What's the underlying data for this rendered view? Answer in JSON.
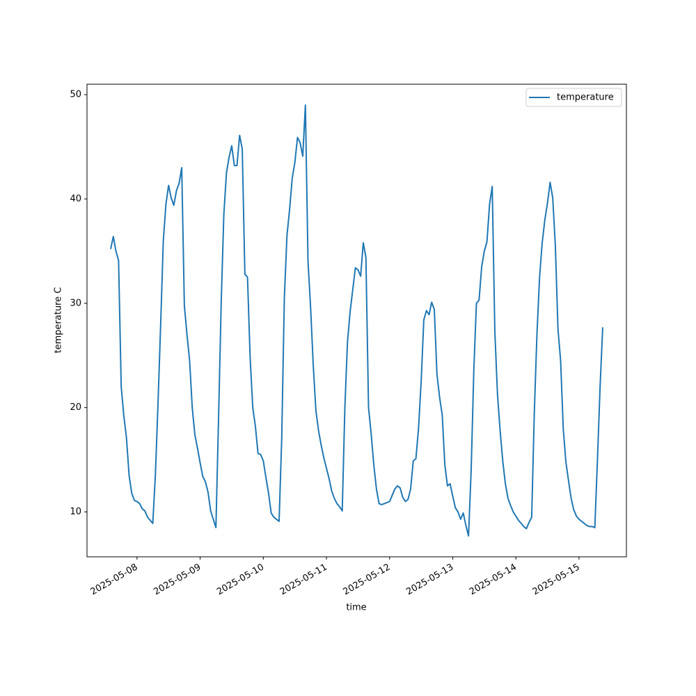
{
  "chart_data": {
    "type": "line",
    "xlabel": "time",
    "ylabel": "temperature C",
    "x": [
      "2025-05-07 14:00",
      "2025-05-07 15:00",
      "2025-05-07 16:00",
      "2025-05-07 17:00",
      "2025-05-07 18:00",
      "2025-05-07 19:00",
      "2025-05-07 20:00",
      "2025-05-07 21:00",
      "2025-05-07 22:00",
      "2025-05-07 23:00",
      "2025-05-08 00:00",
      "2025-05-08 01:00",
      "2025-05-08 02:00",
      "2025-05-08 03:00",
      "2025-05-08 04:00",
      "2025-05-08 05:00",
      "2025-05-08 06:00",
      "2025-05-08 07:00",
      "2025-05-08 08:00",
      "2025-05-08 09:00",
      "2025-05-08 10:00",
      "2025-05-08 11:00",
      "2025-05-08 12:00",
      "2025-05-08 13:00",
      "2025-05-08 14:00",
      "2025-05-08 15:00",
      "2025-05-08 16:00",
      "2025-05-08 17:00",
      "2025-05-08 18:00",
      "2025-05-08 19:00",
      "2025-05-08 20:00",
      "2025-05-08 21:00",
      "2025-05-08 22:00",
      "2025-05-08 23:00",
      "2025-05-09 00:00",
      "2025-05-09 01:00",
      "2025-05-09 02:00",
      "2025-05-09 03:00",
      "2025-05-09 04:00",
      "2025-05-09 05:00",
      "2025-05-09 06:00",
      "2025-05-09 07:00",
      "2025-05-09 08:00",
      "2025-05-09 09:00",
      "2025-05-09 10:00",
      "2025-05-09 11:00",
      "2025-05-09 12:00",
      "2025-05-09 13:00",
      "2025-05-09 14:00",
      "2025-05-09 15:00",
      "2025-05-09 16:00",
      "2025-05-09 17:00",
      "2025-05-09 18:00",
      "2025-05-09 19:00",
      "2025-05-09 20:00",
      "2025-05-09 21:00",
      "2025-05-09 22:00",
      "2025-05-09 23:00",
      "2025-05-10 00:00",
      "2025-05-10 01:00",
      "2025-05-10 02:00",
      "2025-05-10 03:00",
      "2025-05-10 04:00",
      "2025-05-10 05:00",
      "2025-05-10 06:00",
      "2025-05-10 07:00",
      "2025-05-10 08:00",
      "2025-05-10 09:00",
      "2025-05-10 10:00",
      "2025-05-10 11:00",
      "2025-05-10 12:00",
      "2025-05-10 13:00",
      "2025-05-10 14:00",
      "2025-05-10 15:00",
      "2025-05-10 16:00",
      "2025-05-10 17:00",
      "2025-05-10 18:00",
      "2025-05-10 19:00",
      "2025-05-10 20:00",
      "2025-05-10 21:00",
      "2025-05-10 22:00",
      "2025-05-10 23:00",
      "2025-05-11 00:00",
      "2025-05-11 01:00",
      "2025-05-11 02:00",
      "2025-05-11 03:00",
      "2025-05-11 04:00",
      "2025-05-11 05:00",
      "2025-05-11 06:00",
      "2025-05-11 07:00",
      "2025-05-11 08:00",
      "2025-05-11 09:00",
      "2025-05-11 10:00",
      "2025-05-11 11:00",
      "2025-05-11 12:00",
      "2025-05-11 13:00",
      "2025-05-11 14:00",
      "2025-05-11 15:00",
      "2025-05-11 16:00",
      "2025-05-11 17:00",
      "2025-05-11 18:00",
      "2025-05-11 19:00",
      "2025-05-11 20:00",
      "2025-05-11 21:00",
      "2025-05-11 22:00",
      "2025-05-11 23:00",
      "2025-05-12 00:00",
      "2025-05-12 01:00",
      "2025-05-12 02:00",
      "2025-05-12 03:00",
      "2025-05-12 04:00",
      "2025-05-12 05:00",
      "2025-05-12 06:00",
      "2025-05-12 07:00",
      "2025-05-12 08:00",
      "2025-05-12 09:00",
      "2025-05-12 10:00",
      "2025-05-12 11:00",
      "2025-05-12 12:00",
      "2025-05-12 13:00",
      "2025-05-12 14:00",
      "2025-05-12 15:00",
      "2025-05-12 16:00",
      "2025-05-12 17:00",
      "2025-05-12 18:00",
      "2025-05-12 19:00",
      "2025-05-12 20:00",
      "2025-05-12 21:00",
      "2025-05-12 22:00",
      "2025-05-12 23:00",
      "2025-05-13 00:00",
      "2025-05-13 01:00",
      "2025-05-13 02:00",
      "2025-05-13 03:00",
      "2025-05-13 04:00",
      "2025-05-13 05:00",
      "2025-05-13 06:00",
      "2025-05-13 07:00",
      "2025-05-13 08:00",
      "2025-05-13 09:00",
      "2025-05-13 10:00",
      "2025-05-13 11:00",
      "2025-05-13 12:00",
      "2025-05-13 13:00",
      "2025-05-13 14:00",
      "2025-05-13 15:00",
      "2025-05-13 16:00",
      "2025-05-13 17:00",
      "2025-05-13 18:00",
      "2025-05-13 19:00",
      "2025-05-13 20:00",
      "2025-05-13 21:00",
      "2025-05-13 22:00",
      "2025-05-13 23:00",
      "2025-05-14 00:00",
      "2025-05-14 01:00",
      "2025-05-14 02:00",
      "2025-05-14 03:00",
      "2025-05-14 04:00",
      "2025-05-14 05:00",
      "2025-05-14 06:00",
      "2025-05-14 07:00",
      "2025-05-14 08:00",
      "2025-05-14 09:00",
      "2025-05-14 10:00",
      "2025-05-14 11:00",
      "2025-05-14 12:00",
      "2025-05-14 13:00",
      "2025-05-14 14:00",
      "2025-05-14 15:00",
      "2025-05-14 16:00",
      "2025-05-14 17:00",
      "2025-05-14 18:00",
      "2025-05-14 19:00",
      "2025-05-14 20:00",
      "2025-05-14 21:00",
      "2025-05-14 22:00",
      "2025-05-14 23:00",
      "2025-05-15 00:00",
      "2025-05-15 01:00",
      "2025-05-15 02:00",
      "2025-05-15 03:00",
      "2025-05-15 04:00",
      "2025-05-15 05:00",
      "2025-05-15 06:00",
      "2025-05-15 07:00",
      "2025-05-15 08:00",
      "2025-05-15 09:00"
    ],
    "series": [
      {
        "name": "temperature",
        "color": "#1f77b4",
        "values": [
          35.2,
          36.4,
          35.0,
          34.1,
          22.0,
          19.2,
          17.1,
          13.5,
          11.8,
          11.1,
          11.0,
          10.8,
          10.3,
          10.1,
          9.5,
          9.2,
          8.9,
          13.6,
          20.5,
          28.0,
          36.0,
          39.5,
          41.3,
          40.1,
          39.4,
          40.8,
          41.5,
          43.0,
          29.8,
          27.0,
          24.5,
          20.0,
          17.4,
          16.1,
          14.7,
          13.4,
          12.9,
          11.9,
          10.1,
          9.3,
          8.5,
          19.0,
          30.0,
          38.5,
          42.5,
          44.0,
          45.1,
          43.2,
          43.2,
          46.1,
          44.8,
          32.8,
          32.5,
          24.8,
          20.0,
          18.2,
          15.6,
          15.5,
          14.9,
          13.3,
          11.8,
          9.9,
          9.5,
          9.3,
          9.1,
          17.0,
          30.5,
          36.5,
          39.0,
          42.0,
          43.5,
          45.9,
          45.4,
          44.1,
          49.0,
          34.0,
          29.5,
          24.0,
          19.7,
          17.8,
          16.4,
          15.2,
          14.2,
          13.2,
          12.0,
          11.3,
          10.8,
          10.5,
          10.1,
          20.0,
          26.3,
          29.2,
          31.3,
          33.4,
          33.2,
          32.6,
          35.8,
          34.4,
          20.0,
          17.5,
          14.5,
          12.2,
          10.8,
          10.7,
          10.8,
          10.9,
          11.0,
          11.6,
          12.2,
          12.5,
          12.3,
          11.4,
          11.0,
          11.2,
          12.2,
          14.9,
          15.1,
          18.0,
          22.5,
          28.4,
          29.3,
          28.9,
          30.1,
          29.4,
          23.2,
          21.0,
          19.3,
          14.5,
          12.5,
          12.7,
          11.5,
          10.4,
          10.0,
          9.3,
          9.9,
          8.7,
          7.7,
          14.0,
          23.5,
          30.0,
          30.3,
          33.5,
          35.0,
          35.9,
          39.5,
          41.2,
          27.3,
          21.3,
          17.8,
          14.9,
          12.7,
          11.3,
          10.6,
          10.0,
          9.6,
          9.2,
          8.9,
          8.6,
          8.4,
          9.0,
          9.5,
          19.5,
          27.0,
          32.5,
          35.8,
          38.0,
          39.6,
          41.6,
          40.1,
          35.5,
          27.5,
          24.5,
          18.0,
          14.8,
          13.0,
          11.3,
          10.2,
          9.6,
          9.3,
          9.1,
          8.9,
          8.7,
          8.6,
          8.6,
          8.5,
          15.0,
          22.0,
          27.7
        ]
      }
    ],
    "xlim": [
      "2025-05-07 05:00",
      "2025-05-15 18:00"
    ],
    "xticks": [
      "2025-05-08",
      "2025-05-09",
      "2025-05-10",
      "2025-05-11",
      "2025-05-12",
      "2025-05-13",
      "2025-05-14",
      "2025-05-15"
    ],
    "ylim": [
      5.7,
      51
    ],
    "yticks": [
      10,
      20,
      30,
      40,
      50
    ],
    "grid": false,
    "legend": "upper right"
  }
}
